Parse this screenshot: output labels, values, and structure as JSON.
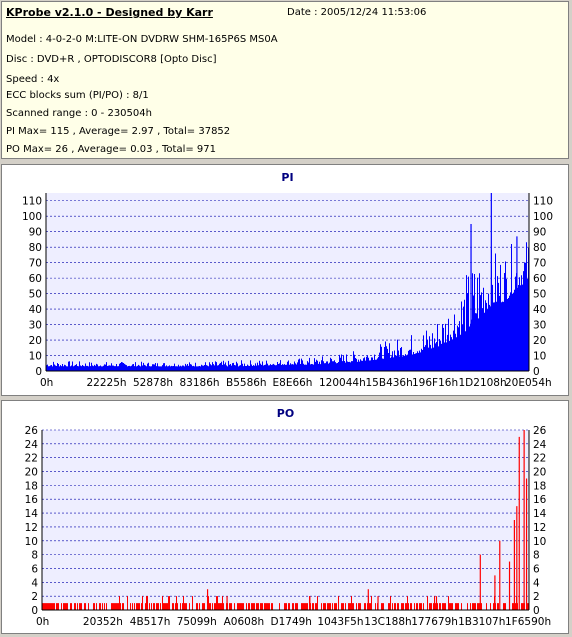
{
  "header": {
    "title": "KProbe v2.1.0 - Designed by Karr",
    "date": "Date : 2005/12/24 11:53:06",
    "lines": [
      "Model : 4-0-2-0 M:LITE-ON DVDRW SHM-165P6S MS0A",
      "Disc : DVD+R , OPTODISCOR8 [Opto Disc]",
      "Speed : 4x",
      "ECC blocks sum (PI/PO) : 8/1",
      "Scanned range : 0 - 230504h",
      "PI Max= 115 , Average= 2.97 , Total= 37852",
      "PO Max= 26 , Average= 0.03 , Total= 971"
    ]
  },
  "colors": {
    "pi": "#0000ff",
    "po": "#ff0000",
    "info_bg": "#ffffe8",
    "plot_bg": "#eeeeff"
  },
  "chart_data": [
    {
      "type": "bar",
      "title": "PI",
      "xlabel": "",
      "ylabel": "",
      "x_range": [
        0,
        230504
      ],
      "x_tick_labels": [
        "0h",
        "22225h",
        "52878h",
        "83186h",
        "B5586h",
        "E8E66h",
        "120044h",
        "15B436h",
        "196F16h",
        "1D2108h",
        "20E054h"
      ],
      "ylim": [
        0,
        115
      ],
      "y_ticks": [
        0,
        10,
        20,
        30,
        40,
        50,
        60,
        70,
        80,
        90,
        100,
        110
      ],
      "grid": true,
      "max": 115,
      "average": 2.97,
      "total": 37852,
      "envelope": {
        "x": [
          0,
          0.1,
          0.2,
          0.3,
          0.4,
          0.5,
          0.55,
          0.6,
          0.65,
          0.7,
          0.75,
          0.8,
          0.82,
          0.85,
          0.88,
          0.9,
          0.92,
          0.95,
          0.98,
          1.0
        ],
        "base": [
          3,
          3,
          3,
          3,
          3,
          4,
          4,
          5,
          6,
          8,
          10,
          14,
          17,
          22,
          28,
          35,
          42,
          45,
          55,
          58
        ],
        "peak": [
          7,
          6,
          6,
          6,
          7,
          8,
          9,
          11,
          14,
          19,
          24,
          32,
          40,
          55,
          70,
          85,
          80,
          80,
          85,
          87
        ]
      },
      "spikes": [
        {
          "x": 0.88,
          "value": 95
        },
        {
          "x": 0.922,
          "value": 115
        },
        {
          "x": 0.975,
          "value": 87
        }
      ]
    },
    {
      "type": "bar",
      "title": "PO",
      "xlabel": "",
      "ylabel": "",
      "x_range": [
        0,
        230504
      ],
      "x_tick_labels": [
        "0h",
        "20352h",
        "4B517h",
        "75099h",
        "A0608h",
        "D1749h",
        "1043F5h",
        "13C188h",
        "177679h",
        "1B3107h",
        "1F6590h"
      ],
      "ylim": [
        0,
        26
      ],
      "y_ticks": [
        0,
        2,
        4,
        6,
        8,
        10,
        12,
        14,
        16,
        18,
        20,
        22,
        24,
        26
      ],
      "grid": true,
      "max": 26,
      "average": 0.03,
      "total": 971,
      "spikes": [
        {
          "x": 0.26,
          "value": 2
        },
        {
          "x": 0.34,
          "value": 3
        },
        {
          "x": 0.38,
          "value": 2
        },
        {
          "x": 0.55,
          "value": 2
        },
        {
          "x": 0.67,
          "value": 3
        },
        {
          "x": 0.69,
          "value": 2
        },
        {
          "x": 0.81,
          "value": 2
        },
        {
          "x": 0.9,
          "value": 8
        },
        {
          "x": 0.93,
          "value": 5
        },
        {
          "x": 0.94,
          "value": 10
        },
        {
          "x": 0.96,
          "value": 7
        },
        {
          "x": 0.97,
          "value": 13
        },
        {
          "x": 0.975,
          "value": 15
        },
        {
          "x": 0.98,
          "value": 25
        },
        {
          "x": 0.99,
          "value": 26
        },
        {
          "x": 0.995,
          "value": 19
        }
      ]
    }
  ]
}
